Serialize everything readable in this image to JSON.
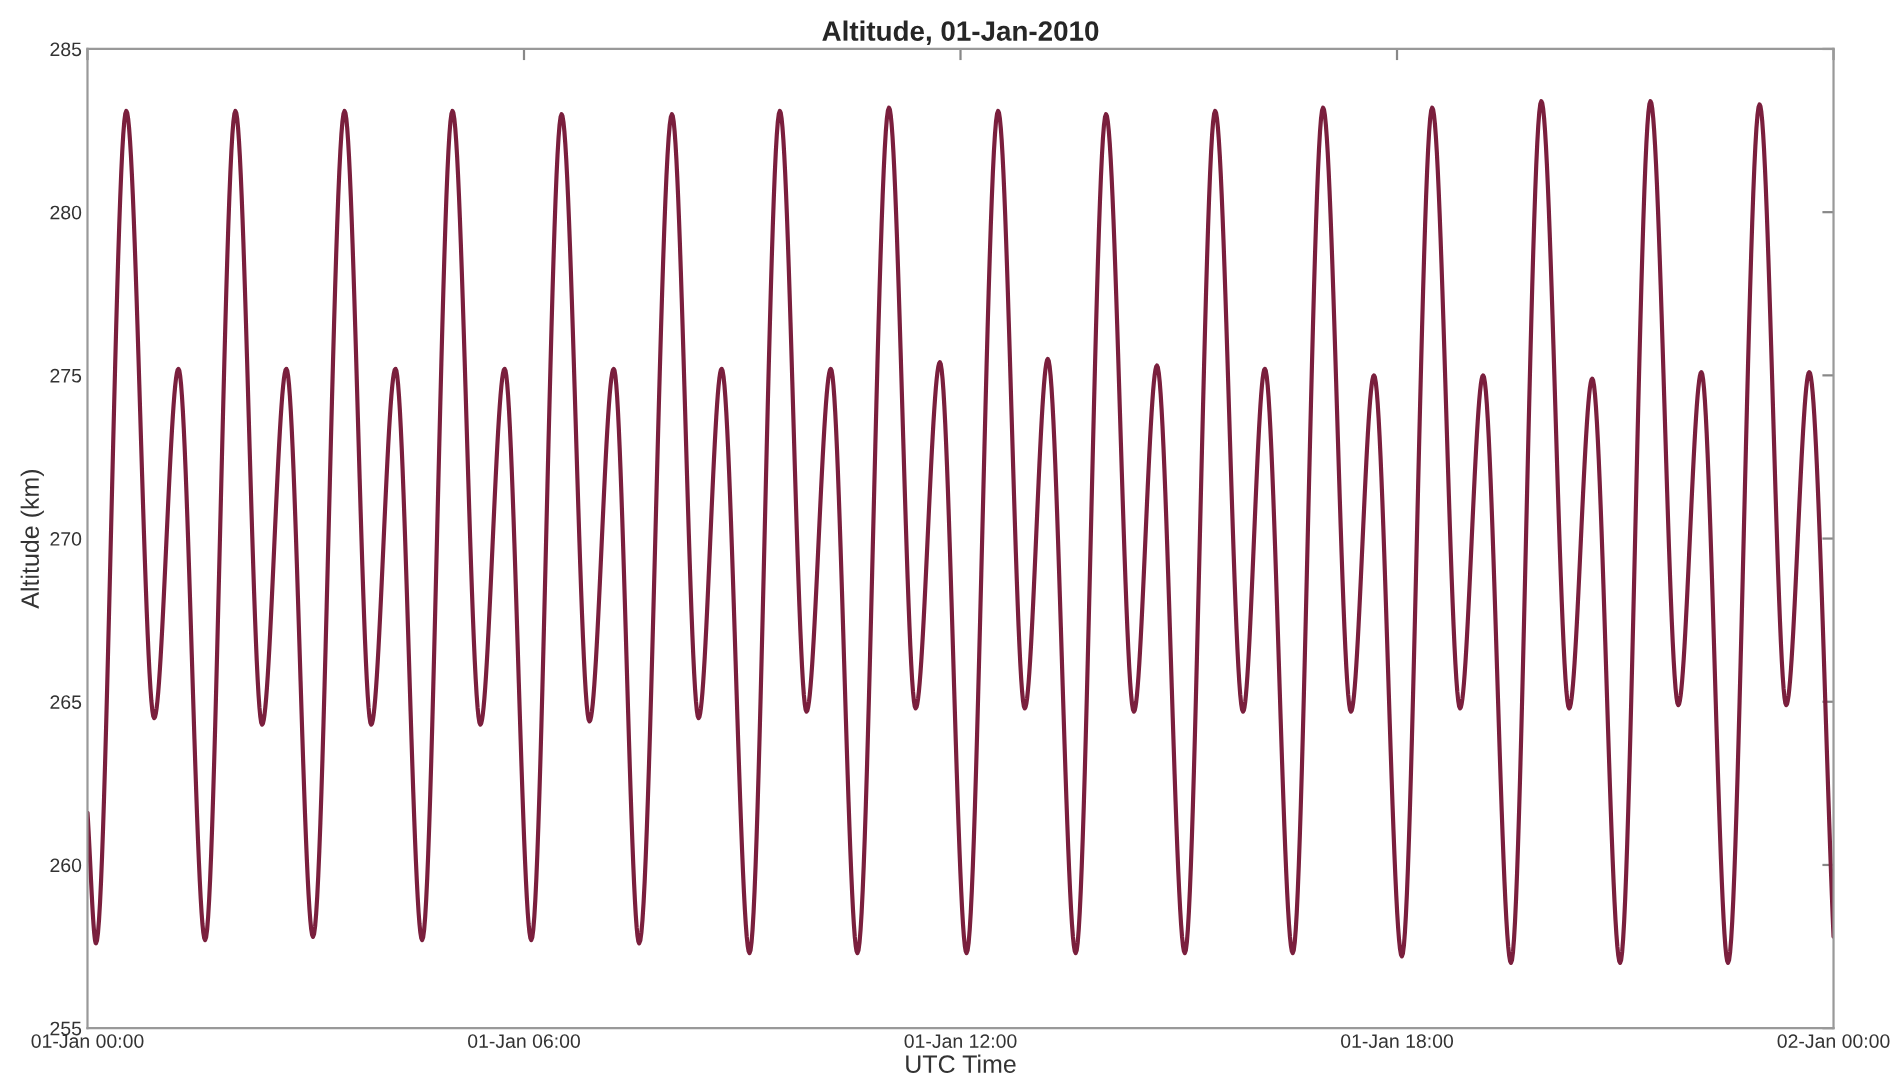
{
  "chart_data": {
    "type": "line",
    "title": "Altitude, 01-Jan-2010",
    "xlabel": "UTC Time",
    "ylabel": "Altitude (km)",
    "xlim": [
      "2010-01-01T00:00",
      "2010-01-02T00:00"
    ],
    "xticks": [
      {
        "value": "2010-01-01T00:00",
        "label": "01-Jan 00:00"
      },
      {
        "value": "2010-01-01T06:00",
        "label": "01-Jan 06:00"
      },
      {
        "value": "2010-01-01T12:00",
        "label": "01-Jan 12:00"
      },
      {
        "value": "2010-01-01T18:00",
        "label": "01-Jan 18:00"
      },
      {
        "value": "2010-01-02T00:00",
        "label": "02-Jan 00:00"
      }
    ],
    "ylim": [
      255,
      285
    ],
    "yticks": [
      255,
      260,
      265,
      270,
      275,
      280,
      285
    ],
    "grid": false,
    "legend": false,
    "marker": "none",
    "line_style": "solid",
    "series": [
      {
        "color": "#7a1f3d",
        "x": [
          "2010-01-01T00:00",
          "2010-01-01T00:07",
          "2010-01-01T00:32",
          "2010-01-01T00:55",
          "2010-01-01T01:15",
          "2010-01-01T01:37",
          "2010-01-01T02:02",
          "2010-01-01T02:24",
          "2010-01-01T02:44",
          "2010-01-01T03:06",
          "2010-01-01T03:32",
          "2010-01-01T03:54",
          "2010-01-01T04:14",
          "2010-01-01T04:36",
          "2010-01-01T05:01",
          "2010-01-01T05:24",
          "2010-01-01T05:44",
          "2010-01-01T06:06",
          "2010-01-01T06:31",
          "2010-01-01T06:54",
          "2010-01-01T07:14",
          "2010-01-01T07:35",
          "2010-01-01T08:02",
          "2010-01-01T08:24",
          "2010-01-01T08:43",
          "2010-01-01T09:06",
          "2010-01-01T09:31",
          "2010-01-01T09:53",
          "2010-01-01T10:13",
          "2010-01-01T10:35",
          "2010-01-01T11:01",
          "2010-01-01T11:23",
          "2010-01-01T11:43",
          "2010-01-01T12:05",
          "2010-01-01T12:31",
          "2010-01-01T12:53",
          "2010-01-01T13:12",
          "2010-01-01T13:35",
          "2010-01-01T14:00",
          "2010-01-01T14:23",
          "2010-01-01T14:42",
          "2010-01-01T15:05",
          "2010-01-01T15:30",
          "2010-01-01T15:53",
          "2010-01-01T16:11",
          "2010-01-01T16:34",
          "2010-01-01T16:59",
          "2010-01-01T17:22",
          "2010-01-01T17:41",
          "2010-01-01T18:04",
          "2010-01-01T18:29",
          "2010-01-01T18:52",
          "2010-01-01T19:11",
          "2010-01-01T19:34",
          "2010-01-01T19:59",
          "2010-01-01T20:22",
          "2010-01-01T20:41",
          "2010-01-01T21:04",
          "2010-01-01T21:29",
          "2010-01-01T21:52",
          "2010-01-01T22:11",
          "2010-01-01T22:33",
          "2010-01-01T22:59",
          "2010-01-01T23:21",
          "2010-01-01T23:40",
          "2010-01-02T00:00"
        ],
        "values": [
          261.6,
          257.6,
          283.1,
          264.5,
          275.2,
          257.7,
          283.1,
          264.3,
          275.2,
          257.8,
          283.1,
          264.3,
          275.2,
          257.7,
          283.1,
          264.3,
          275.2,
          257.7,
          283.0,
          264.4,
          275.2,
          257.6,
          283.0,
          264.5,
          275.2,
          257.3,
          283.1,
          264.7,
          275.2,
          257.3,
          283.2,
          264.8,
          275.4,
          257.3,
          283.1,
          264.8,
          275.5,
          257.3,
          283.0,
          264.7,
          275.3,
          257.3,
          283.1,
          264.7,
          275.2,
          257.3,
          283.2,
          264.7,
          275.0,
          257.2,
          283.2,
          264.8,
          275.0,
          257.0,
          283.4,
          264.8,
          274.9,
          257.0,
          283.4,
          264.9,
          275.1,
          257.0,
          283.3,
          264.9,
          275.1,
          257.8
        ]
      }
    ]
  }
}
